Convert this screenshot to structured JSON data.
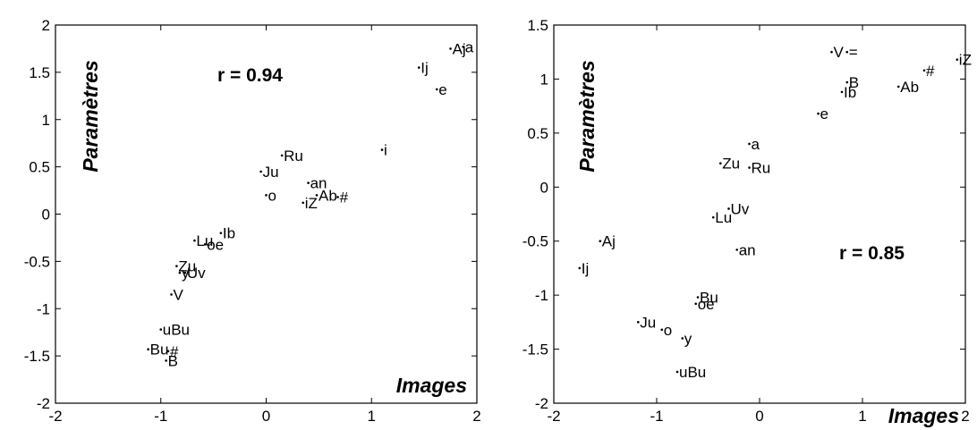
{
  "chart_data": [
    {
      "type": "scatter",
      "xlabel": "Images",
      "ylabel": "Paramètres",
      "annotation": "r = 0.94",
      "xlim": [
        -2,
        2
      ],
      "ylim": [
        -2,
        2
      ],
      "xticks": [
        "-2",
        "-1",
        "0",
        "1",
        "2"
      ],
      "yticks": [
        "2",
        "1.5",
        "1",
        "0.5",
        "0",
        "-0.5",
        "-1",
        "-1.5",
        "-2"
      ],
      "grid": false,
      "points": [
        {
          "label": "Aj",
          "x": 1.75,
          "y": 1.75
        },
        {
          "label": "a",
          "x": 1.87,
          "y": 1.77
        },
        {
          "label": "Ij",
          "x": 1.45,
          "y": 1.55
        },
        {
          "label": "e",
          "x": 1.62,
          "y": 1.32
        },
        {
          "label": "i",
          "x": 1.1,
          "y": 0.68
        },
        {
          "label": "Ru",
          "x": 0.15,
          "y": 0.62
        },
        {
          "label": "Ju",
          "x": -0.05,
          "y": 0.45
        },
        {
          "label": "an",
          "x": 0.4,
          "y": 0.33
        },
        {
          "label": "o",
          "x": 0.0,
          "y": 0.2
        },
        {
          "label": "Ab",
          "x": 0.48,
          "y": 0.2
        },
        {
          "label": "iZ",
          "x": 0.35,
          "y": 0.12
        },
        {
          "label": "#",
          "x": 0.68,
          "y": 0.18
        },
        {
          "label": "Ib",
          "x": -0.43,
          "y": -0.2
        },
        {
          "label": "Lu",
          "x": -0.68,
          "y": -0.28
        },
        {
          "label": "oe",
          "x": -0.58,
          "y": -0.32
        },
        {
          "label": "Zu",
          "x": -0.85,
          "y": -0.55
        },
        {
          "label": "y",
          "x": -0.82,
          "y": -0.62
        },
        {
          "label": "Uv",
          "x": -0.77,
          "y": -0.62
        },
        {
          "label": "V",
          "x": -0.9,
          "y": -0.85
        },
        {
          "label": "uBu",
          "x": -1.0,
          "y": -1.22
        },
        {
          "label": "Bu",
          "x": -1.12,
          "y": -1.43
        },
        {
          "label": "#",
          "x": -0.93,
          "y": -1.45
        },
        {
          "label": "B",
          "x": -0.95,
          "y": -1.55
        }
      ]
    },
    {
      "type": "scatter",
      "xlabel": "Images",
      "ylabel": "Paramètres",
      "annotation": "r = 0.85",
      "xlim": [
        -2,
        2
      ],
      "ylim": [
        -2,
        1.5
      ],
      "xticks": [
        "-2",
        "-1",
        "0",
        "1",
        "2"
      ],
      "yticks": [
        "1.5",
        "1",
        "0.5",
        "0",
        "-0.5",
        "-1",
        "-1.5",
        "-2"
      ],
      "grid": false,
      "points": [
        {
          "label": "V",
          "x": 0.7,
          "y": 1.25
        },
        {
          "label": "=",
          "x": 0.85,
          "y": 1.25
        },
        {
          "label": "iZ",
          "x": 1.92,
          "y": 1.18
        },
        {
          "label": "#",
          "x": 1.6,
          "y": 1.08
        },
        {
          "label": "Ab",
          "x": 1.35,
          "y": 0.93
        },
        {
          "label": "B",
          "x": 0.85,
          "y": 0.97
        },
        {
          "label": "Ib",
          "x": 0.8,
          "y": 0.88
        },
        {
          "label": "e",
          "x": 0.57,
          "y": 0.68
        },
        {
          "label": "a",
          "x": -0.1,
          "y": 0.4
        },
        {
          "label": "Zu",
          "x": -0.38,
          "y": 0.22
        },
        {
          "label": "Ru",
          "x": -0.1,
          "y": 0.18
        },
        {
          "label": "Uv",
          "x": -0.3,
          "y": -0.2
        },
        {
          "label": "Lu",
          "x": -0.45,
          "y": -0.28
        },
        {
          "label": "an",
          "x": -0.22,
          "y": -0.58
        },
        {
          "label": "Aj",
          "x": -1.55,
          "y": -0.5
        },
        {
          "label": "Ij",
          "x": -1.75,
          "y": -0.75
        },
        {
          "label": "Bu",
          "x": -0.6,
          "y": -1.02
        },
        {
          "label": "oe",
          "x": -0.62,
          "y": -1.08
        },
        {
          "label": "Ju",
          "x": -1.18,
          "y": -1.25
        },
        {
          "label": "o",
          "x": -0.95,
          "y": -1.32
        },
        {
          "label": "y",
          "x": -0.75,
          "y": -1.4
        },
        {
          "label": "uBu",
          "x": -0.8,
          "y": -1.71
        }
      ]
    }
  ]
}
